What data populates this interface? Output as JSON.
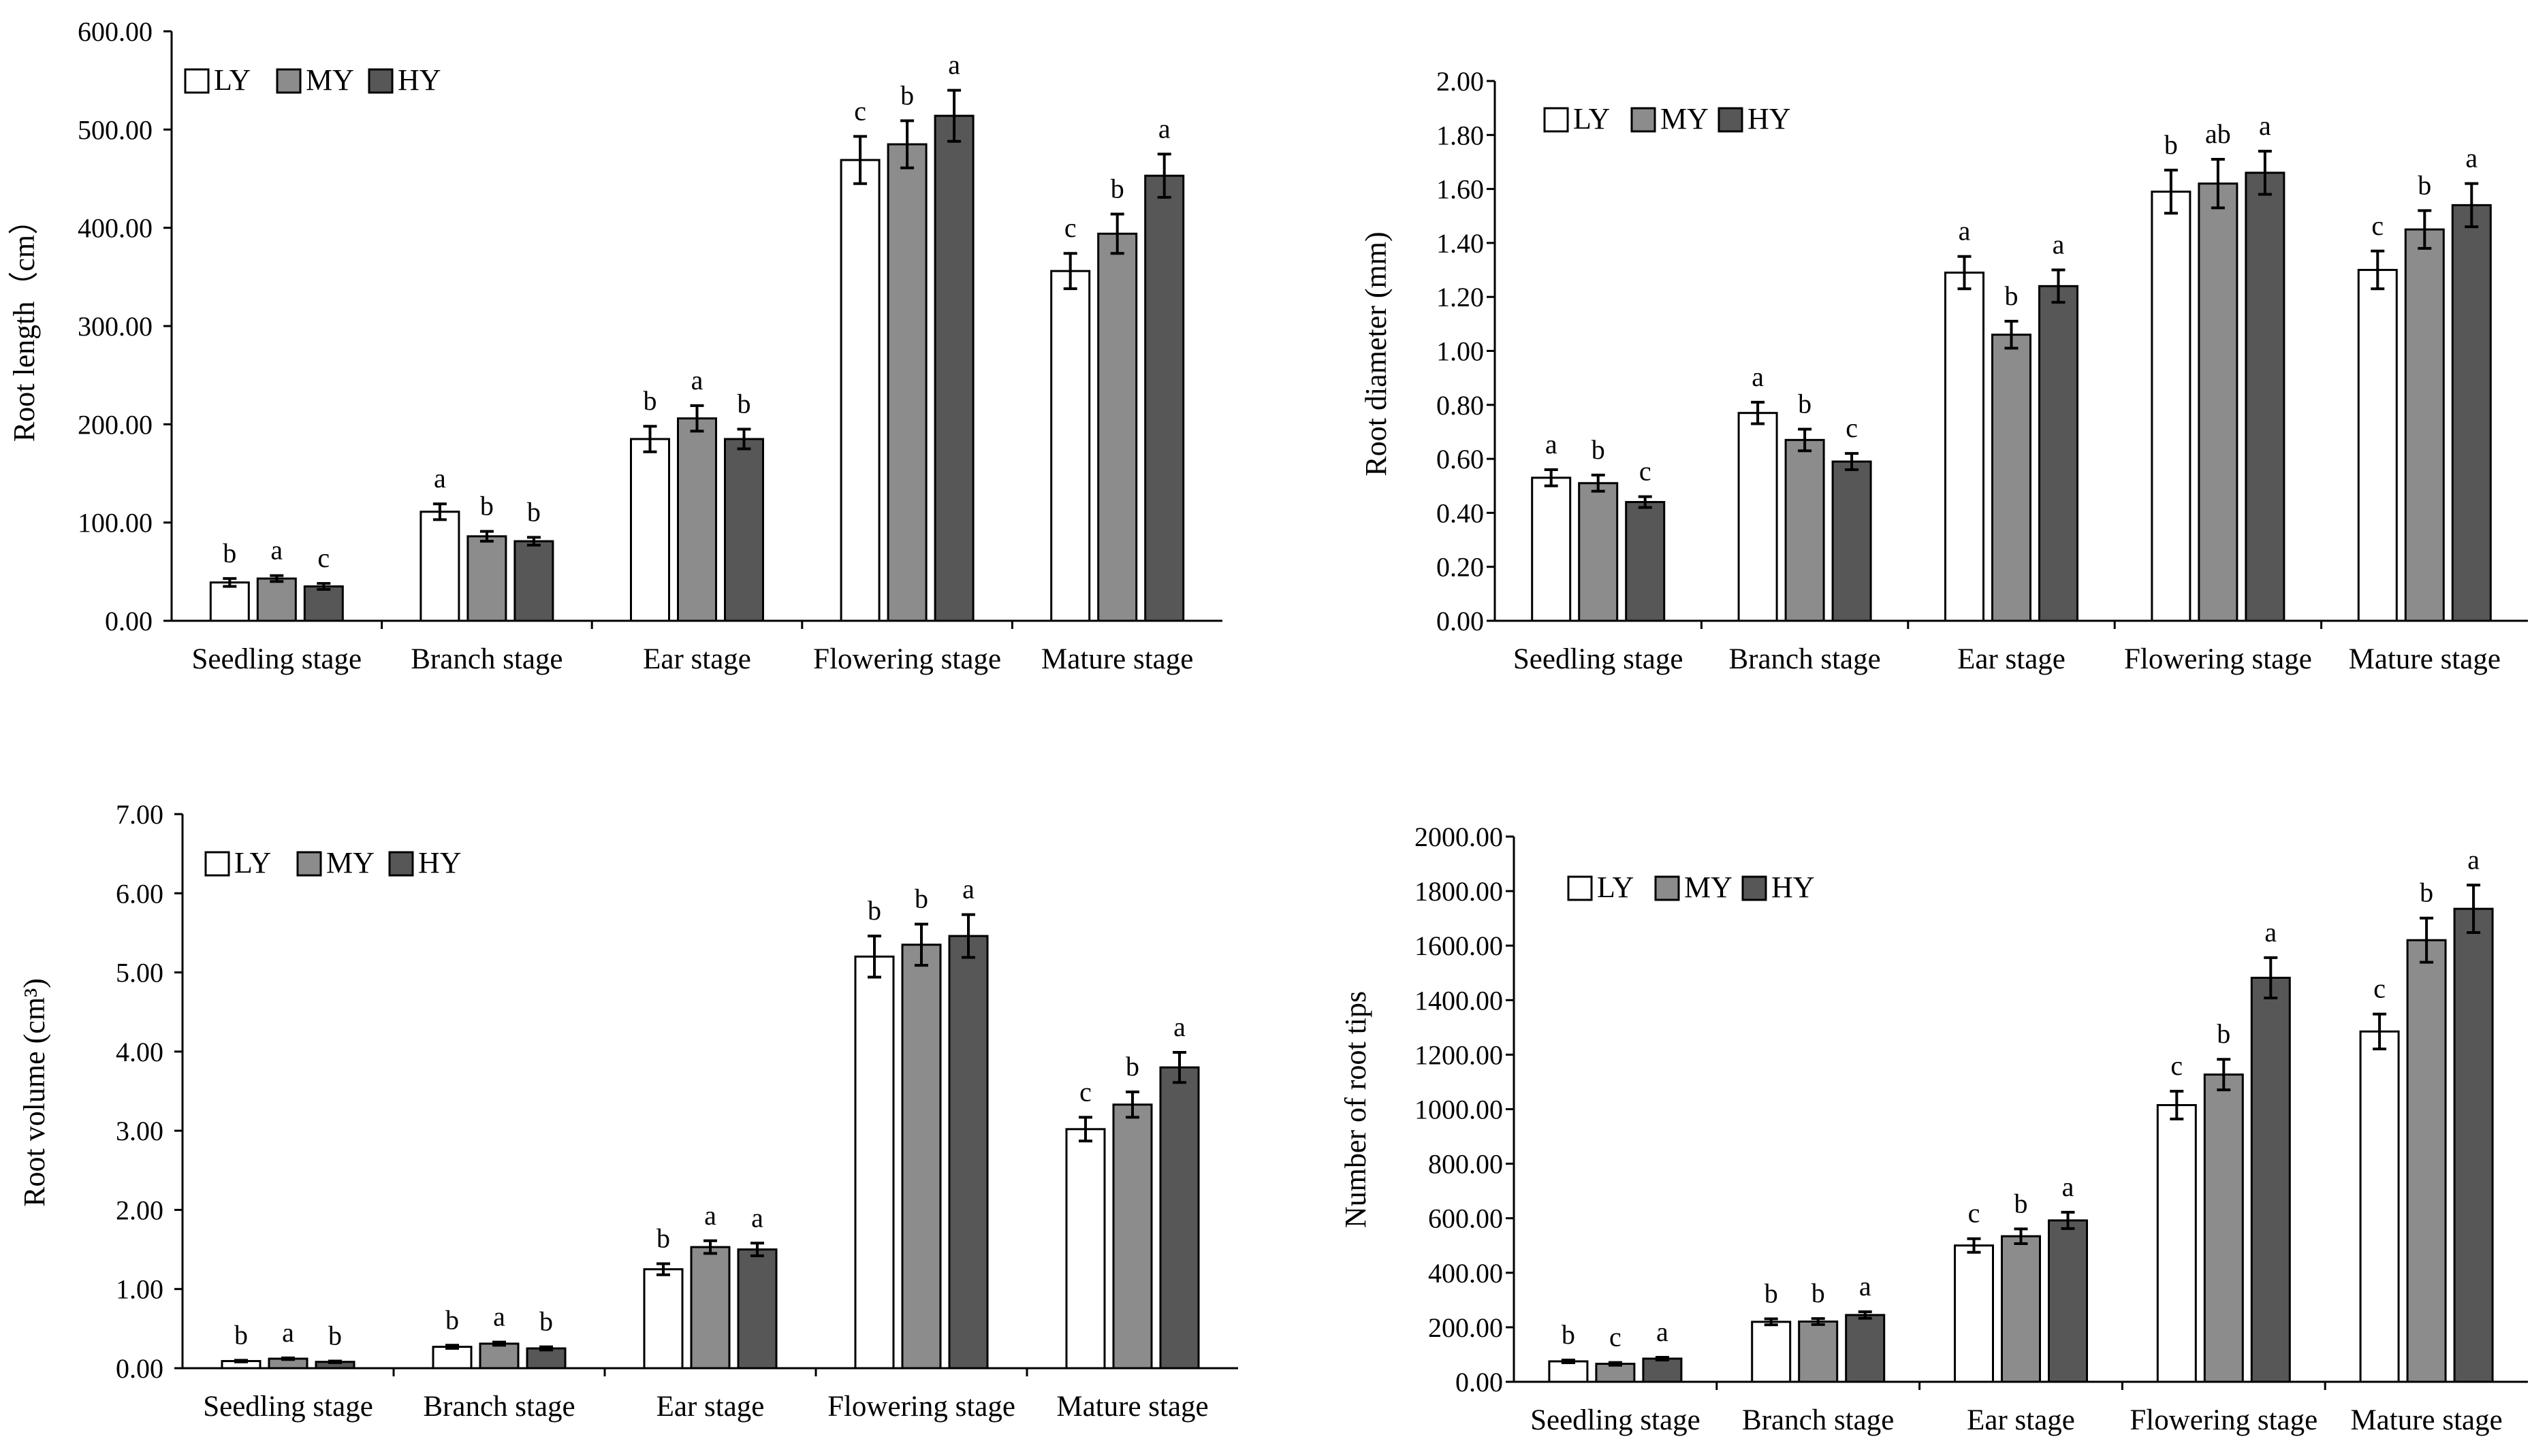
{
  "colors": {
    "LY": "#ffffff",
    "MY": "#8c8c8c",
    "HY": "#575757",
    "stroke": "#000000"
  },
  "chart_data": [
    {
      "type": "bar",
      "ylabel": "Root length（cm）",
      "ylim": [
        0,
        600
      ],
      "yticks": [
        "0.00",
        "100.00",
        "200.00",
        "300.00",
        "400.00",
        "500.00",
        "600.00"
      ],
      "categories": [
        "Seedling stage",
        "Branch stage",
        "Ear stage",
        "Flowering stage",
        "Mature stage"
      ],
      "legend": [
        "LY",
        "MY",
        "HY"
      ],
      "series": [
        {
          "name": "LY",
          "values": [
            39,
            111,
            185,
            469,
            356
          ],
          "errors": [
            4,
            8,
            13,
            24,
            18
          ],
          "labels": [
            "b",
            "a",
            "b",
            "c",
            "c"
          ]
        },
        {
          "name": "MY",
          "values": [
            43,
            86,
            206,
            485,
            394
          ],
          "errors": [
            3,
            5,
            13,
            24,
            20
          ],
          "labels": [
            "a",
            "b",
            "a",
            "b",
            "b"
          ]
        },
        {
          "name": "HY",
          "values": [
            35,
            81,
            185,
            514,
            453
          ],
          "errors": [
            3,
            4,
            10,
            26,
            22
          ],
          "labels": [
            "c",
            "b",
            "b",
            "a",
            "a"
          ]
        }
      ]
    },
    {
      "type": "bar",
      "ylabel": "Root diameter (mm)",
      "ylim": [
        0,
        2
      ],
      "yticks": [
        "0.00",
        "0.20",
        "0.40",
        "0.60",
        "0.80",
        "1.00",
        "1.20",
        "1.40",
        "1.60",
        "1.80",
        "2.00"
      ],
      "categories": [
        "Seedling stage",
        "Branch stage",
        "Ear stage",
        "Flowering stage",
        "Mature stage"
      ],
      "legend": [
        "LY",
        "MY",
        "HY"
      ],
      "series": [
        {
          "name": "LY",
          "values": [
            0.53,
            0.77,
            1.29,
            1.59,
            1.3
          ],
          "errors": [
            0.03,
            0.04,
            0.06,
            0.08,
            0.07
          ],
          "labels": [
            "a",
            "a",
            "a",
            "b",
            "c"
          ]
        },
        {
          "name": "MY",
          "values": [
            0.51,
            0.67,
            1.06,
            1.62,
            1.45
          ],
          "errors": [
            0.03,
            0.04,
            0.05,
            0.09,
            0.07
          ],
          "labels": [
            "b",
            "b",
            "b",
            "ab",
            "b"
          ]
        },
        {
          "name": "HY",
          "values": [
            0.44,
            0.59,
            1.24,
            1.66,
            1.54
          ],
          "errors": [
            0.02,
            0.03,
            0.06,
            0.08,
            0.08
          ],
          "labels": [
            "c",
            "c",
            "a",
            "a",
            "a"
          ]
        }
      ]
    },
    {
      "type": "bar",
      "ylabel": "Root volume (cm³)",
      "ylim": [
        0,
        7
      ],
      "yticks": [
        "0.00",
        "1.00",
        "2.00",
        "3.00",
        "4.00",
        "5.00",
        "6.00",
        "7.00"
      ],
      "categories": [
        "Seedling stage",
        "Branch stage",
        "Ear stage",
        "Flowering stage",
        "Mature stage"
      ],
      "legend": [
        "LY",
        "MY",
        "HY"
      ],
      "series": [
        {
          "name": "LY",
          "values": [
            0.09,
            0.27,
            1.25,
            5.2,
            3.02
          ],
          "errors": [
            0.01,
            0.02,
            0.07,
            0.26,
            0.15
          ],
          "labels": [
            "b",
            "b",
            "b",
            "b",
            "c"
          ]
        },
        {
          "name": "MY",
          "values": [
            0.12,
            0.31,
            1.53,
            5.35,
            3.33
          ],
          "errors": [
            0.01,
            0.02,
            0.08,
            0.26,
            0.16
          ],
          "labels": [
            "a",
            "a",
            "a",
            "b",
            "b"
          ]
        },
        {
          "name": "HY",
          "values": [
            0.08,
            0.25,
            1.5,
            5.46,
            3.8
          ],
          "errors": [
            0.01,
            0.02,
            0.08,
            0.27,
            0.19
          ],
          "labels": [
            "b",
            "b",
            "a",
            "a",
            "a"
          ]
        }
      ]
    },
    {
      "type": "bar",
      "ylabel": "Number of root tips",
      "ylim": [
        0,
        2000
      ],
      "yticks": [
        "0.00",
        "200.00",
        "400.00",
        "600.00",
        "800.00",
        "1000.00",
        "1200.00",
        "1400.00",
        "1600.00",
        "1800.00",
        "2000.00"
      ],
      "categories": [
        "Seedling stage",
        "Branch stage",
        "Ear stage",
        "Flowering stage",
        "Mature stage"
      ],
      "legend": [
        "LY",
        "MY",
        "HY"
      ],
      "series": [
        {
          "name": "LY",
          "values": [
            75,
            220,
            500,
            1015,
            1285
          ],
          "errors": [
            5,
            11,
            25,
            51,
            64
          ],
          "labels": [
            "b",
            "b",
            "c",
            "c",
            "c"
          ]
        },
        {
          "name": "MY",
          "values": [
            66,
            221,
            534,
            1127,
            1620
          ],
          "errors": [
            5,
            11,
            27,
            56,
            81
          ],
          "labels": [
            "c",
            "b",
            "b",
            "b",
            "b"
          ]
        },
        {
          "name": "HY",
          "values": [
            85,
            245,
            592,
            1482,
            1735
          ],
          "errors": [
            5,
            12,
            30,
            74,
            87
          ],
          "labels": [
            "a",
            "a",
            "a",
            "a",
            "a"
          ]
        }
      ]
    }
  ]
}
